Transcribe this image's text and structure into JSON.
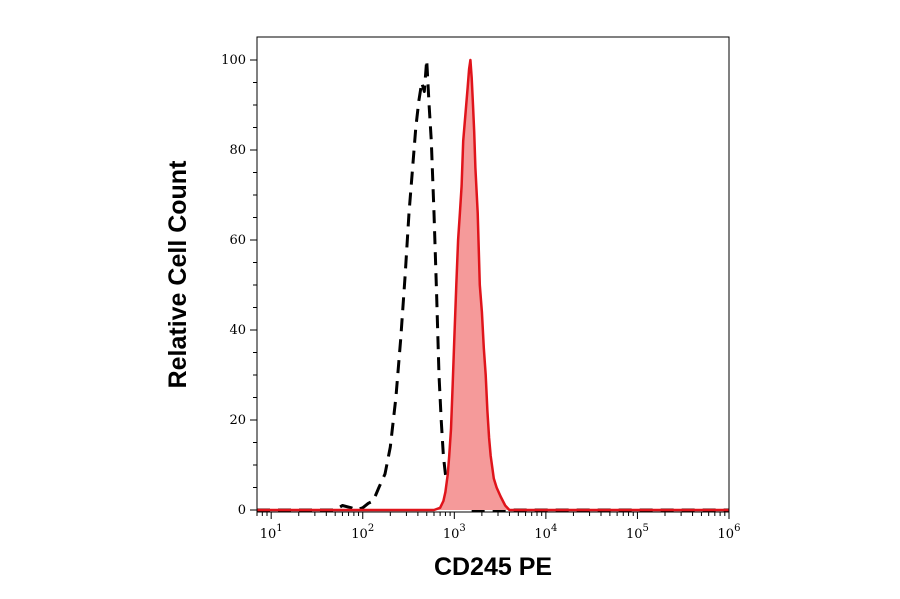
{
  "chart_data": {
    "type": "area",
    "xlabel": "CD245 PE",
    "ylabel": "Relative Cell Count",
    "xscale": "log",
    "xlim": [
      7,
      1000000
    ],
    "ylim": [
      0,
      100
    ],
    "x_ticks": [
      {
        "base": "10",
        "exp": "1"
      },
      {
        "base": "10",
        "exp": "2"
      },
      {
        "base": "10",
        "exp": "3"
      },
      {
        "base": "10",
        "exp": "4"
      },
      {
        "base": "10",
        "exp": "5"
      },
      {
        "base": "10",
        "exp": "6"
      }
    ],
    "y_ticks": [
      "0",
      "20",
      "40",
      "60",
      "80",
      "100"
    ],
    "grid": false,
    "series": [
      {
        "style": "dashed",
        "color": "#000000",
        "fill": "none",
        "x": [
          7,
          50,
          60,
          75,
          85,
          100,
          115,
          130,
          150,
          175,
          200,
          230,
          260,
          290,
          320,
          350,
          380,
          410,
          440,
          470,
          500,
          530,
          560,
          600,
          640,
          680,
          720,
          760,
          800,
          850,
          900,
          1000,
          1200,
          1500,
          1000000
        ],
        "y": [
          0,
          0,
          1,
          0.5,
          0,
          0.5,
          1.5,
          2,
          5,
          8,
          14,
          25,
          38,
          52,
          66,
          76,
          85,
          91,
          95,
          93,
          100,
          90,
          82,
          66,
          48,
          30,
          20,
          12,
          8,
          5,
          3,
          1,
          0.5,
          0,
          0
        ]
      },
      {
        "style": "solid",
        "color": "#e0141b",
        "fill": "#f59a9a",
        "x": [
          7,
          600,
          700,
          760,
          800,
          850,
          880,
          920,
          960,
          1000,
          1050,
          1100,
          1150,
          1200,
          1250,
          1300,
          1350,
          1400,
          1450,
          1500,
          1550,
          1600,
          1650,
          1700,
          1800,
          1900,
          2000,
          2100,
          2200,
          2300,
          2400,
          2500,
          2700,
          2900,
          3200,
          3600,
          4000,
          1000000
        ],
        "y": [
          0,
          0,
          0.5,
          2,
          4,
          8,
          12,
          18,
          28,
          38,
          50,
          60,
          66,
          72,
          82,
          86,
          90,
          94,
          98,
          100,
          96,
          90,
          84,
          76,
          66,
          50,
          44,
          36,
          30,
          22,
          16,
          12,
          7,
          5,
          3,
          1,
          0,
          0
        ]
      }
    ]
  }
}
